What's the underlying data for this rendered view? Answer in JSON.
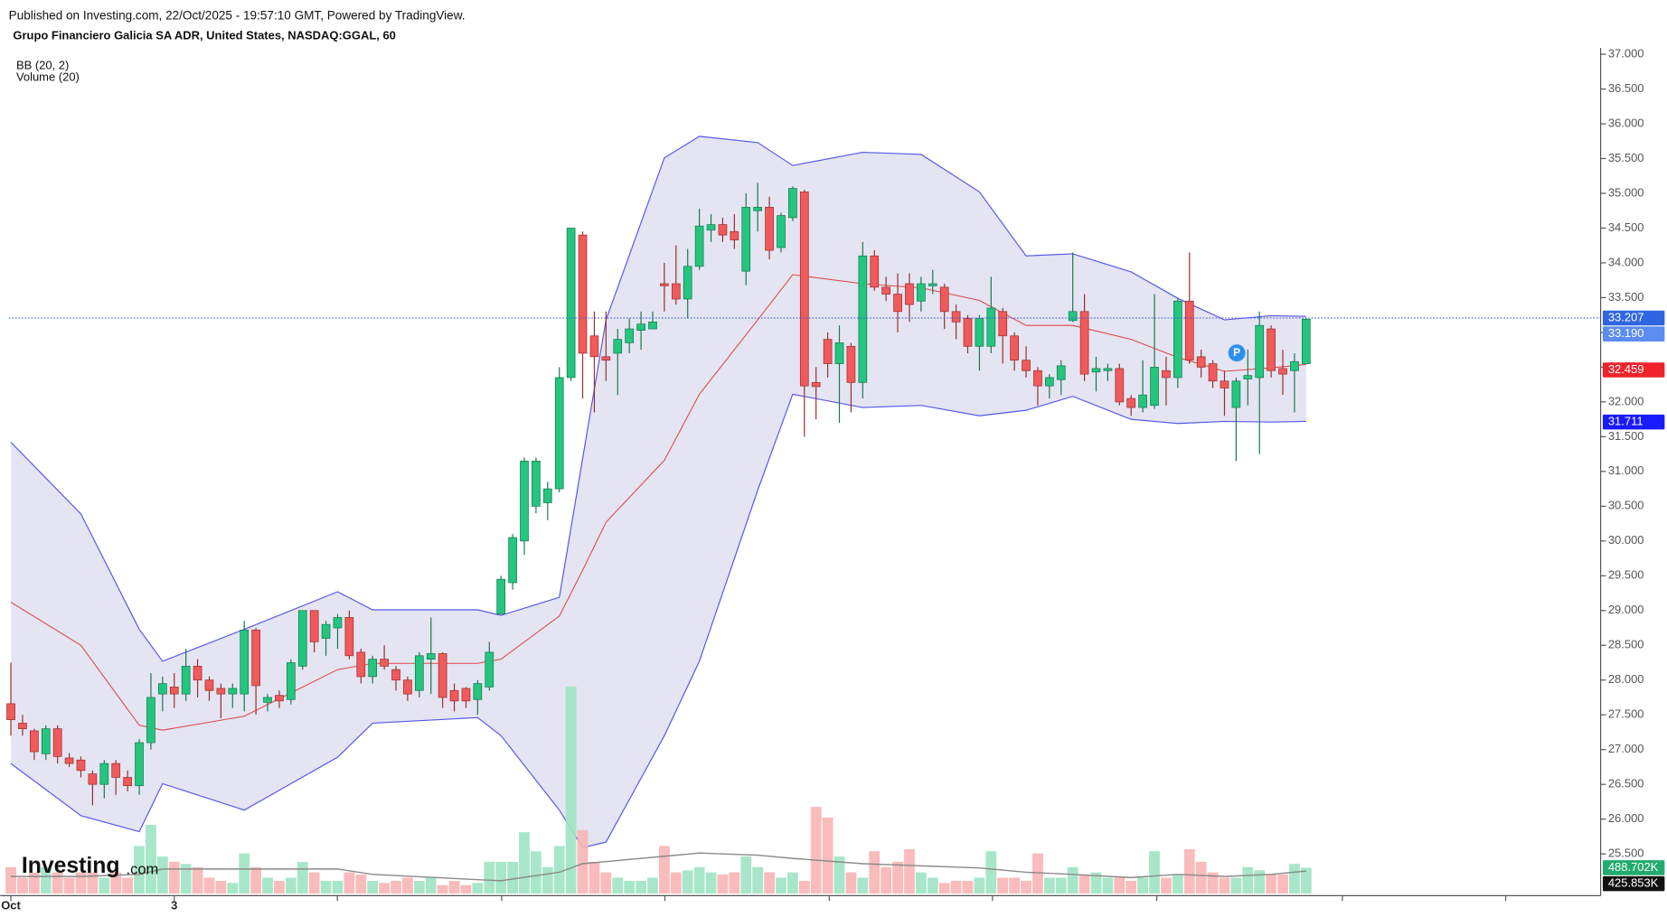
{
  "header": {
    "published": "Published on Investing.com, 22/Oct/2025 - 19:57:10 GMT, Powered by TradingView.",
    "symbol": "Grupo Financiero Galicia SA ADR, United States, NASDAQ:GGAL, 60",
    "indicators": [
      "BB (20, 2)",
      "Volume (20)"
    ],
    "logo": [
      "Investing",
      ".com"
    ],
    "marker": "P"
  },
  "chart_data": {
    "type": "candlestick",
    "categories": [
      "Oct",
      null,
      null,
      null,
      null,
      null,
      null,
      null,
      null,
      null,
      null,
      null,
      null,
      null,
      "3",
      null,
      null,
      null,
      null,
      null,
      null,
      null,
      null,
      null,
      null,
      null,
      null,
      null,
      null,
      null,
      null,
      null,
      null,
      null,
      null,
      null,
      null,
      null,
      null,
      null,
      null,
      null,
      null,
      null,
      null,
      null,
      null,
      null,
      null,
      null,
      null,
      null,
      null,
      null,
      null,
      null,
      null,
      null,
      null,
      null,
      null,
      null,
      null,
      null,
      null,
      null,
      null,
      null,
      null,
      null,
      null,
      null,
      null,
      null,
      null,
      null,
      null,
      null,
      null,
      null,
      null,
      null,
      null,
      null,
      null,
      null,
      null,
      null,
      null,
      null,
      null,
      null,
      null,
      null,
      null,
      null,
      null,
      null,
      null,
      null,
      null,
      null,
      null,
      null,
      null,
      null,
      null,
      null,
      null,
      null,
      null,
      null
    ],
    "open": [
      27.66,
      27.38,
      27.27,
      26.94,
      27.3,
      26.88,
      26.85,
      26.65,
      26.5,
      26.8,
      26.6,
      26.48,
      27.1,
      27.8,
      27.9,
      27.8,
      28.2,
      28.0,
      27.88,
      27.8,
      27.8,
      28.72,
      27.68,
      27.78,
      27.72,
      28.2,
      29.0,
      28.6,
      28.75,
      28.9,
      28.4,
      28.05,
      28.3,
      28.15,
      28.0,
      27.85,
      28.3,
      28.38,
      27.85,
      27.88,
      27.72,
      27.9,
      28.95,
      29.4,
      30.0,
      30.5,
      30.55,
      30.75,
      32.35,
      34.4,
      32.95,
      32.65,
      32.7,
      32.85,
      33.03,
      33.05,
      33.7,
      33.7,
      33.48,
      33.95,
      34.47,
      34.55,
      34.45,
      33.88,
      34.75,
      34.8,
      34.22,
      34.65,
      35.02,
      32.28,
      32.9,
      32.55,
      32.8,
      32.28,
      34.1,
      33.65,
      33.55,
      33.7,
      33.45,
      33.67,
      33.65,
      33.3,
      33.2,
      32.8,
      32.8,
      33.3,
      32.95,
      32.6,
      32.45,
      32.23,
      32.32,
      33.17,
      33.3,
      32.43,
      32.45,
      32.48,
      32.05,
      31.92,
      31.95,
      32.45,
      32.35,
      33.45,
      32.65,
      32.55,
      32.3,
      31.92,
      32.33,
      32.35,
      33.05,
      32.48,
      32.45,
      32.55
    ],
    "high": [
      28.25,
      27.5,
      27.3,
      27.35,
      27.35,
      26.95,
      26.9,
      26.7,
      26.85,
      26.85,
      26.7,
      27.15,
      28.1,
      28.05,
      28.1,
      28.45,
      28.3,
      28.05,
      27.95,
      27.95,
      28.85,
      28.75,
      27.8,
      27.85,
      28.3,
      29.0,
      29.0,
      28.85,
      28.95,
      29.0,
      28.45,
      28.35,
      28.5,
      28.2,
      28.05,
      28.4,
      28.9,
      28.4,
      27.95,
      27.9,
      28.0,
      28.55,
      29.5,
      30.1,
      31.2,
      31.2,
      30.85,
      32.5,
      34.5,
      34.45,
      33.3,
      33.3,
      33.05,
      33.2,
      33.3,
      33.3,
      34.0,
      34.25,
      34.2,
      34.78,
      34.7,
      34.65,
      34.7,
      35.0,
      35.15,
      34.95,
      34.72,
      35.1,
      35.05,
      32.5,
      33.0,
      33.1,
      32.85,
      34.3,
      34.18,
      33.8,
      33.85,
      33.85,
      33.8,
      33.9,
      33.7,
      33.4,
      33.25,
      33.25,
      33.8,
      33.35,
      33.0,
      32.8,
      32.5,
      32.4,
      32.6,
      34.15,
      33.55,
      32.65,
      32.55,
      32.55,
      32.1,
      32.6,
      33.55,
      32.65,
      33.5,
      34.15,
      32.75,
      32.6,
      32.45,
      32.35,
      32.75,
      33.3,
      33.1,
      32.75,
      32.7,
      33.21
    ],
    "low": [
      27.2,
      27.2,
      26.85,
      26.85,
      26.8,
      26.75,
      26.6,
      26.2,
      26.3,
      26.35,
      26.4,
      26.35,
      27.0,
      27.55,
      27.6,
      27.7,
      27.75,
      27.7,
      27.45,
      27.6,
      27.55,
      27.5,
      27.55,
      27.6,
      27.65,
      28.15,
      28.4,
      28.35,
      28.45,
      28.3,
      27.95,
      27.95,
      28.15,
      27.85,
      27.7,
      27.75,
      27.8,
      27.6,
      27.55,
      27.6,
      27.5,
      27.85,
      28.95,
      29.3,
      29.8,
      30.4,
      30.3,
      30.7,
      32.3,
      32.05,
      31.85,
      32.3,
      32.1,
      32.7,
      32.75,
      33.05,
      33.3,
      33.4,
      33.2,
      33.9,
      34.3,
      34.3,
      34.2,
      33.68,
      34.45,
      34.05,
      34.15,
      34.6,
      31.5,
      31.75,
      32.35,
      31.7,
      31.85,
      32.05,
      33.6,
      33.45,
      33.0,
      33.15,
      33.3,
      33.55,
      33.05,
      32.9,
      32.7,
      32.45,
      32.7,
      32.55,
      32.45,
      32.35,
      31.95,
      32.05,
      32.1,
      33.15,
      32.3,
      32.15,
      32.3,
      31.95,
      31.8,
      31.85,
      31.9,
      31.95,
      32.2,
      32.55,
      32.35,
      32.2,
      31.8,
      31.15,
      31.95,
      31.25,
      32.35,
      32.1,
      31.85,
      32.55
    ],
    "close": [
      27.43,
      27.3,
      26.97,
      27.3,
      26.9,
      26.8,
      26.7,
      26.5,
      26.8,
      26.6,
      26.48,
      27.1,
      27.75,
      27.95,
      27.8,
      28.2,
      28.0,
      27.85,
      27.8,
      27.88,
      28.72,
      27.92,
      27.75,
      27.7,
      28.25,
      29.0,
      28.55,
      28.8,
      28.9,
      28.35,
      28.05,
      28.3,
      28.2,
      28.0,
      27.8,
      28.35,
      28.38,
      27.75,
      27.7,
      27.7,
      27.95,
      28.4,
      29.45,
      30.05,
      31.15,
      31.15,
      30.75,
      32.35,
      34.5,
      32.7,
      32.65,
      32.6,
      32.9,
      33.05,
      33.12,
      33.15,
      33.67,
      33.48,
      33.95,
      34.53,
      34.55,
      34.4,
      34.33,
      34.8,
      34.8,
      34.18,
      34.68,
      35.07,
      32.23,
      32.22,
      32.55,
      32.85,
      32.28,
      34.1,
      33.65,
      33.55,
      33.3,
      33.4,
      33.7,
      33.7,
      33.3,
      33.15,
      32.8,
      33.2,
      33.35,
      32.95,
      32.6,
      32.45,
      32.23,
      32.35,
      32.52,
      33.3,
      32.4,
      32.48,
      32.48,
      32.0,
      31.92,
      32.1,
      32.5,
      32.35,
      33.45,
      32.6,
      32.5,
      32.3,
      32.2,
      32.3,
      32.38,
      33.1,
      32.45,
      32.4,
      32.58,
      33.19
    ],
    "up_color": "#23c57f",
    "down_color": "#f05a5a",
    "ylim": [
      24.93,
      37.09
    ],
    "yticks": [
      {
        "value": 25.5,
        "label": "25.500"
      },
      {
        "value": 26.0,
        "label": "26.000"
      },
      {
        "value": 26.5,
        "label": "26.500"
      },
      {
        "value": 27.0,
        "label": "27.000"
      },
      {
        "value": 27.5,
        "label": "27.500"
      },
      {
        "value": 28.0,
        "label": "28.000"
      },
      {
        "value": 28.5,
        "label": "28.500"
      },
      {
        "value": 29.0,
        "label": "29.000"
      },
      {
        "value": 29.5,
        "label": "29.500"
      },
      {
        "value": 30.0,
        "label": "30.000"
      },
      {
        "value": 30.5,
        "label": "30.500"
      },
      {
        "value": 31.0,
        "label": "31.000"
      },
      {
        "value": 31.5,
        "label": "31.500"
      },
      {
        "value": 32.0,
        "label": "32.000"
      },
      {
        "value": 32.5,
        "label": "32.500"
      },
      {
        "value": 33.0,
        "label": "33.000"
      },
      {
        "value": 33.5,
        "label": "33.500"
      },
      {
        "value": 34.0,
        "label": "34.000"
      },
      {
        "value": 34.5,
        "label": "34.500"
      },
      {
        "value": 35.0,
        "label": "35.000"
      },
      {
        "value": 35.5,
        "label": "35.500"
      },
      {
        "value": 36.0,
        "label": "36.000"
      },
      {
        "value": 36.5,
        "label": "36.500"
      },
      {
        "value": 37.0,
        "label": "37.000"
      }
    ],
    "price_labels": [
      {
        "value": 33.207,
        "label": "33.207",
        "color": "#2f66e0"
      },
      {
        "value": 33.19,
        "label": "33.190",
        "color": "#5b8cef"
      },
      {
        "value": 32.459,
        "label": "32.459",
        "color": "#f0232a"
      },
      {
        "value": 31.711,
        "label": "31.711",
        "color": "#1a1aff"
      }
    ],
    "bb": {
      "x": [
        0,
        6,
        11,
        13,
        20,
        28,
        31,
        40,
        42,
        47,
        49,
        51,
        56,
        59,
        64,
        67,
        73,
        78,
        83,
        87,
        91,
        96,
        100,
        104,
        108,
        111
      ],
      "upper": [
        31.42,
        30.39,
        28.73,
        28.27,
        28.73,
        29.27,
        29.01,
        29.01,
        28.93,
        29.19,
        31.19,
        33.18,
        35.51,
        35.82,
        35.73,
        35.4,
        35.59,
        35.56,
        35.02,
        34.1,
        34.13,
        33.87,
        33.49,
        33.18,
        33.24,
        33.23
      ],
      "middle": [
        29.12,
        28.5,
        27.35,
        27.28,
        27.48,
        28.15,
        28.24,
        28.24,
        28.3,
        28.92,
        29.58,
        30.27,
        31.16,
        32.11,
        33.18,
        33.83,
        33.7,
        33.64,
        33.46,
        33.1,
        33.1,
        32.9,
        32.64,
        32.44,
        32.49,
        32.54
      ],
      "lower": [
        26.8,
        26.05,
        25.82,
        26.51,
        26.13,
        26.89,
        27.38,
        27.46,
        27.2,
        26.13,
        25.59,
        25.67,
        27.2,
        28.27,
        30.73,
        32.11,
        31.92,
        31.95,
        31.8,
        31.88,
        32.08,
        31.75,
        31.69,
        31.72,
        31.71,
        31.72
      ],
      "band_color": "#e4e4f2",
      "line_color": "#5757e8",
      "middle_color": "#e04848"
    },
    "volume": {
      "lim": [
        0,
        16000
      ],
      "values": [
        500,
        300,
        400,
        500,
        400,
        300,
        400,
        400,
        300,
        400,
        300,
        900,
        1300,
        700,
        600,
        560,
        500,
        300,
        240,
        200,
        760,
        500,
        300,
        240,
        300,
        600,
        400,
        240,
        240,
        400,
        360,
        240,
        200,
        240,
        300,
        240,
        300,
        160,
        240,
        160,
        200,
        600,
        600,
        600,
        1160,
        800,
        500,
        900,
        3920,
        1200,
        600,
        400,
        300,
        240,
        240,
        300,
        900,
        400,
        440,
        500,
        400,
        360,
        400,
        700,
        500,
        400,
        300,
        400,
        240,
        1640,
        1440,
        700,
        400,
        300,
        800,
        500,
        600,
        840,
        400,
        300,
        200,
        240,
        240,
        300,
        800,
        300,
        300,
        240,
        760,
        300,
        300,
        500,
        360,
        400,
        300,
        300,
        240,
        300,
        800,
        300,
        360,
        840,
        600,
        400,
        300,
        300,
        500,
        440,
        360,
        360,
        560,
        488.702
      ],
      "up_color": "#9fe3c3",
      "down_color": "#f8b4b4",
      "ma_x": [
        0,
        6,
        11,
        13,
        20,
        28,
        31,
        40,
        42,
        47,
        49,
        51,
        56,
        59,
        64,
        67,
        73,
        78,
        83,
        87,
        91,
        96,
        100,
        104,
        108,
        111
      ],
      "ma": [
        323,
        323,
        363,
        464,
        464,
        464,
        363,
        262,
        242,
        403,
        565,
        605,
        706,
        766,
        726,
        665,
        565,
        524,
        484,
        403,
        363,
        302,
        363,
        323,
        363,
        425.853
      ],
      "ma_color": "#8a8a8a",
      "labels": [
        {
          "value": 488.702,
          "label": "488.702K",
          "color": "#22ab6e"
        },
        {
          "value": 425.853,
          "label": "425.853K",
          "color": "#111111"
        }
      ]
    }
  }
}
